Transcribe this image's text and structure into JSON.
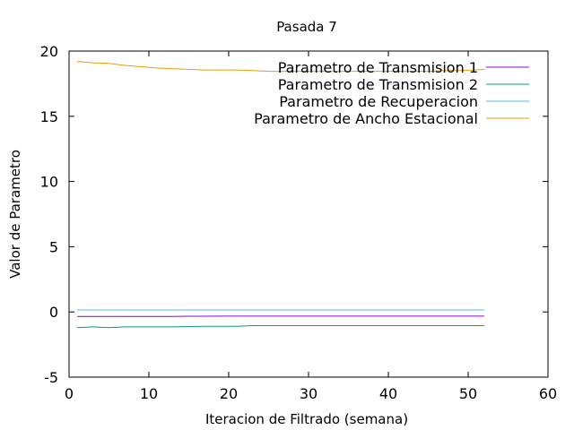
{
  "chart_data": {
    "type": "line",
    "title": "Pasada 7",
    "xlabel": "Iteracion de Filtrado (semana)",
    "ylabel": "Valor de Parametro",
    "xlim": [
      0,
      60
    ],
    "ylim": [
      -5,
      20
    ],
    "xticks": [
      0,
      10,
      20,
      30,
      40,
      50,
      60
    ],
    "yticks": [
      -5,
      0,
      5,
      10,
      15,
      20
    ],
    "xtick_labels": [
      "0",
      "10",
      "20",
      "30",
      "40",
      "50",
      "60"
    ],
    "ytick_labels": [
      "-5",
      "0",
      "5",
      "10",
      "15",
      "20"
    ],
    "grid": false,
    "legend_position": "top-right",
    "x": [
      1,
      3,
      5,
      7,
      9,
      11,
      13,
      15,
      17,
      19,
      21,
      23,
      25,
      27,
      29,
      31,
      33,
      35,
      37,
      39,
      41,
      43,
      45,
      47,
      49,
      51,
      52
    ],
    "series": [
      {
        "name": "Parametro de Transmision 1",
        "color": "#9400d3",
        "values": [
          -0.35,
          -0.35,
          -0.35,
          -0.35,
          -0.35,
          -0.34,
          -0.34,
          -0.33,
          -0.33,
          -0.32,
          -0.32,
          -0.32,
          -0.32,
          -0.32,
          -0.32,
          -0.32,
          -0.32,
          -0.32,
          -0.32,
          -0.32,
          -0.32,
          -0.32,
          -0.32,
          -0.32,
          -0.32,
          -0.32,
          -0.32
        ]
      },
      {
        "name": "Parametro de Transmision 2",
        "color": "#009e73",
        "values": [
          -1.2,
          -1.15,
          -1.2,
          -1.15,
          -1.15,
          -1.15,
          -1.15,
          -1.12,
          -1.1,
          -1.1,
          -1.1,
          -1.05,
          -1.05,
          -1.05,
          -1.05,
          -1.05,
          -1.05,
          -1.05,
          -1.05,
          -1.05,
          -1.05,
          -1.05,
          -1.05,
          -1.05,
          -1.05,
          -1.05,
          -1.05
        ]
      },
      {
        "name": "Parametro de Recuperacion",
        "color": "#56b4e9",
        "values": [
          0.15,
          0.15,
          0.15,
          0.15,
          0.15,
          0.15,
          0.15,
          0.15,
          0.15,
          0.15,
          0.15,
          0.15,
          0.15,
          0.15,
          0.15,
          0.15,
          0.15,
          0.15,
          0.15,
          0.15,
          0.15,
          0.15,
          0.15,
          0.15,
          0.15,
          0.15,
          0.15
        ]
      },
      {
        "name": "Parametro de Ancho Estacional",
        "color": "#e69f00",
        "values": [
          19.2,
          19.1,
          19.05,
          18.9,
          18.8,
          18.7,
          18.65,
          18.6,
          18.55,
          18.55,
          18.55,
          18.5,
          18.45,
          18.45,
          18.45,
          18.45,
          18.45,
          18.45,
          18.45,
          18.45,
          18.45,
          18.45,
          18.45,
          18.5,
          18.5,
          18.55,
          18.6
        ]
      }
    ]
  }
}
